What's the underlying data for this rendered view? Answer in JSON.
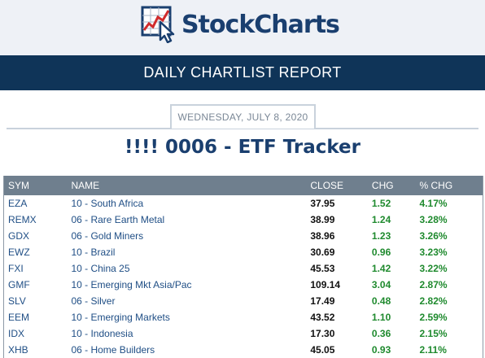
{
  "brand": {
    "name": "StockCharts",
    "logo_icon": "chart-cursor-logo-icon"
  },
  "banner": {
    "title": "DAILY CHARTLIST REPORT"
  },
  "report": {
    "date": "WEDNESDAY, JULY 8, 2020",
    "title": "!!!! 0006 - ETF Tracker"
  },
  "table": {
    "headers": {
      "sym": "SYM",
      "name": "NAME",
      "close": "CLOSE",
      "chg": "CHG",
      "pct_chg": "% CHG"
    },
    "rows": [
      {
        "sym": "EZA",
        "name": "10 - South Africa",
        "close": "37.95",
        "chg": "1.52",
        "pct_chg": "4.17%"
      },
      {
        "sym": "REMX",
        "name": "06 - Rare Earth Metal",
        "close": "38.99",
        "chg": "1.24",
        "pct_chg": "3.28%"
      },
      {
        "sym": "GDX",
        "name": "06 - Gold Miners",
        "close": "38.96",
        "chg": "1.23",
        "pct_chg": "3.26%"
      },
      {
        "sym": "EWZ",
        "name": "10 - Brazil",
        "close": "30.69",
        "chg": "0.96",
        "pct_chg": "3.23%"
      },
      {
        "sym": "FXI",
        "name": "10 - China 25",
        "close": "45.53",
        "chg": "1.42",
        "pct_chg": "3.22%"
      },
      {
        "sym": "GMF",
        "name": "10 - Emerging Mkt Asia/Pac",
        "close": "109.14",
        "chg": "3.04",
        "pct_chg": "2.87%"
      },
      {
        "sym": "SLV",
        "name": "06 - Silver",
        "close": "17.49",
        "chg": "0.48",
        "pct_chg": "2.82%"
      },
      {
        "sym": "EEM",
        "name": "10 - Emerging Markets",
        "close": "43.52",
        "chg": "1.10",
        "pct_chg": "2.59%"
      },
      {
        "sym": "IDX",
        "name": "10 - Indonesia",
        "close": "17.30",
        "chg": "0.36",
        "pct_chg": "2.15%"
      },
      {
        "sym": "XHB",
        "name": "06 - Home Builders",
        "close": "45.05",
        "chg": "0.93",
        "pct_chg": "2.11%"
      }
    ]
  },
  "colors": {
    "banner_bg": "#0f3458",
    "header_bg": "#eef1f6",
    "table_header_bg": "#6f7f8e",
    "symbol_text": "#1f4e85",
    "positive_change": "#1f8a2e"
  }
}
